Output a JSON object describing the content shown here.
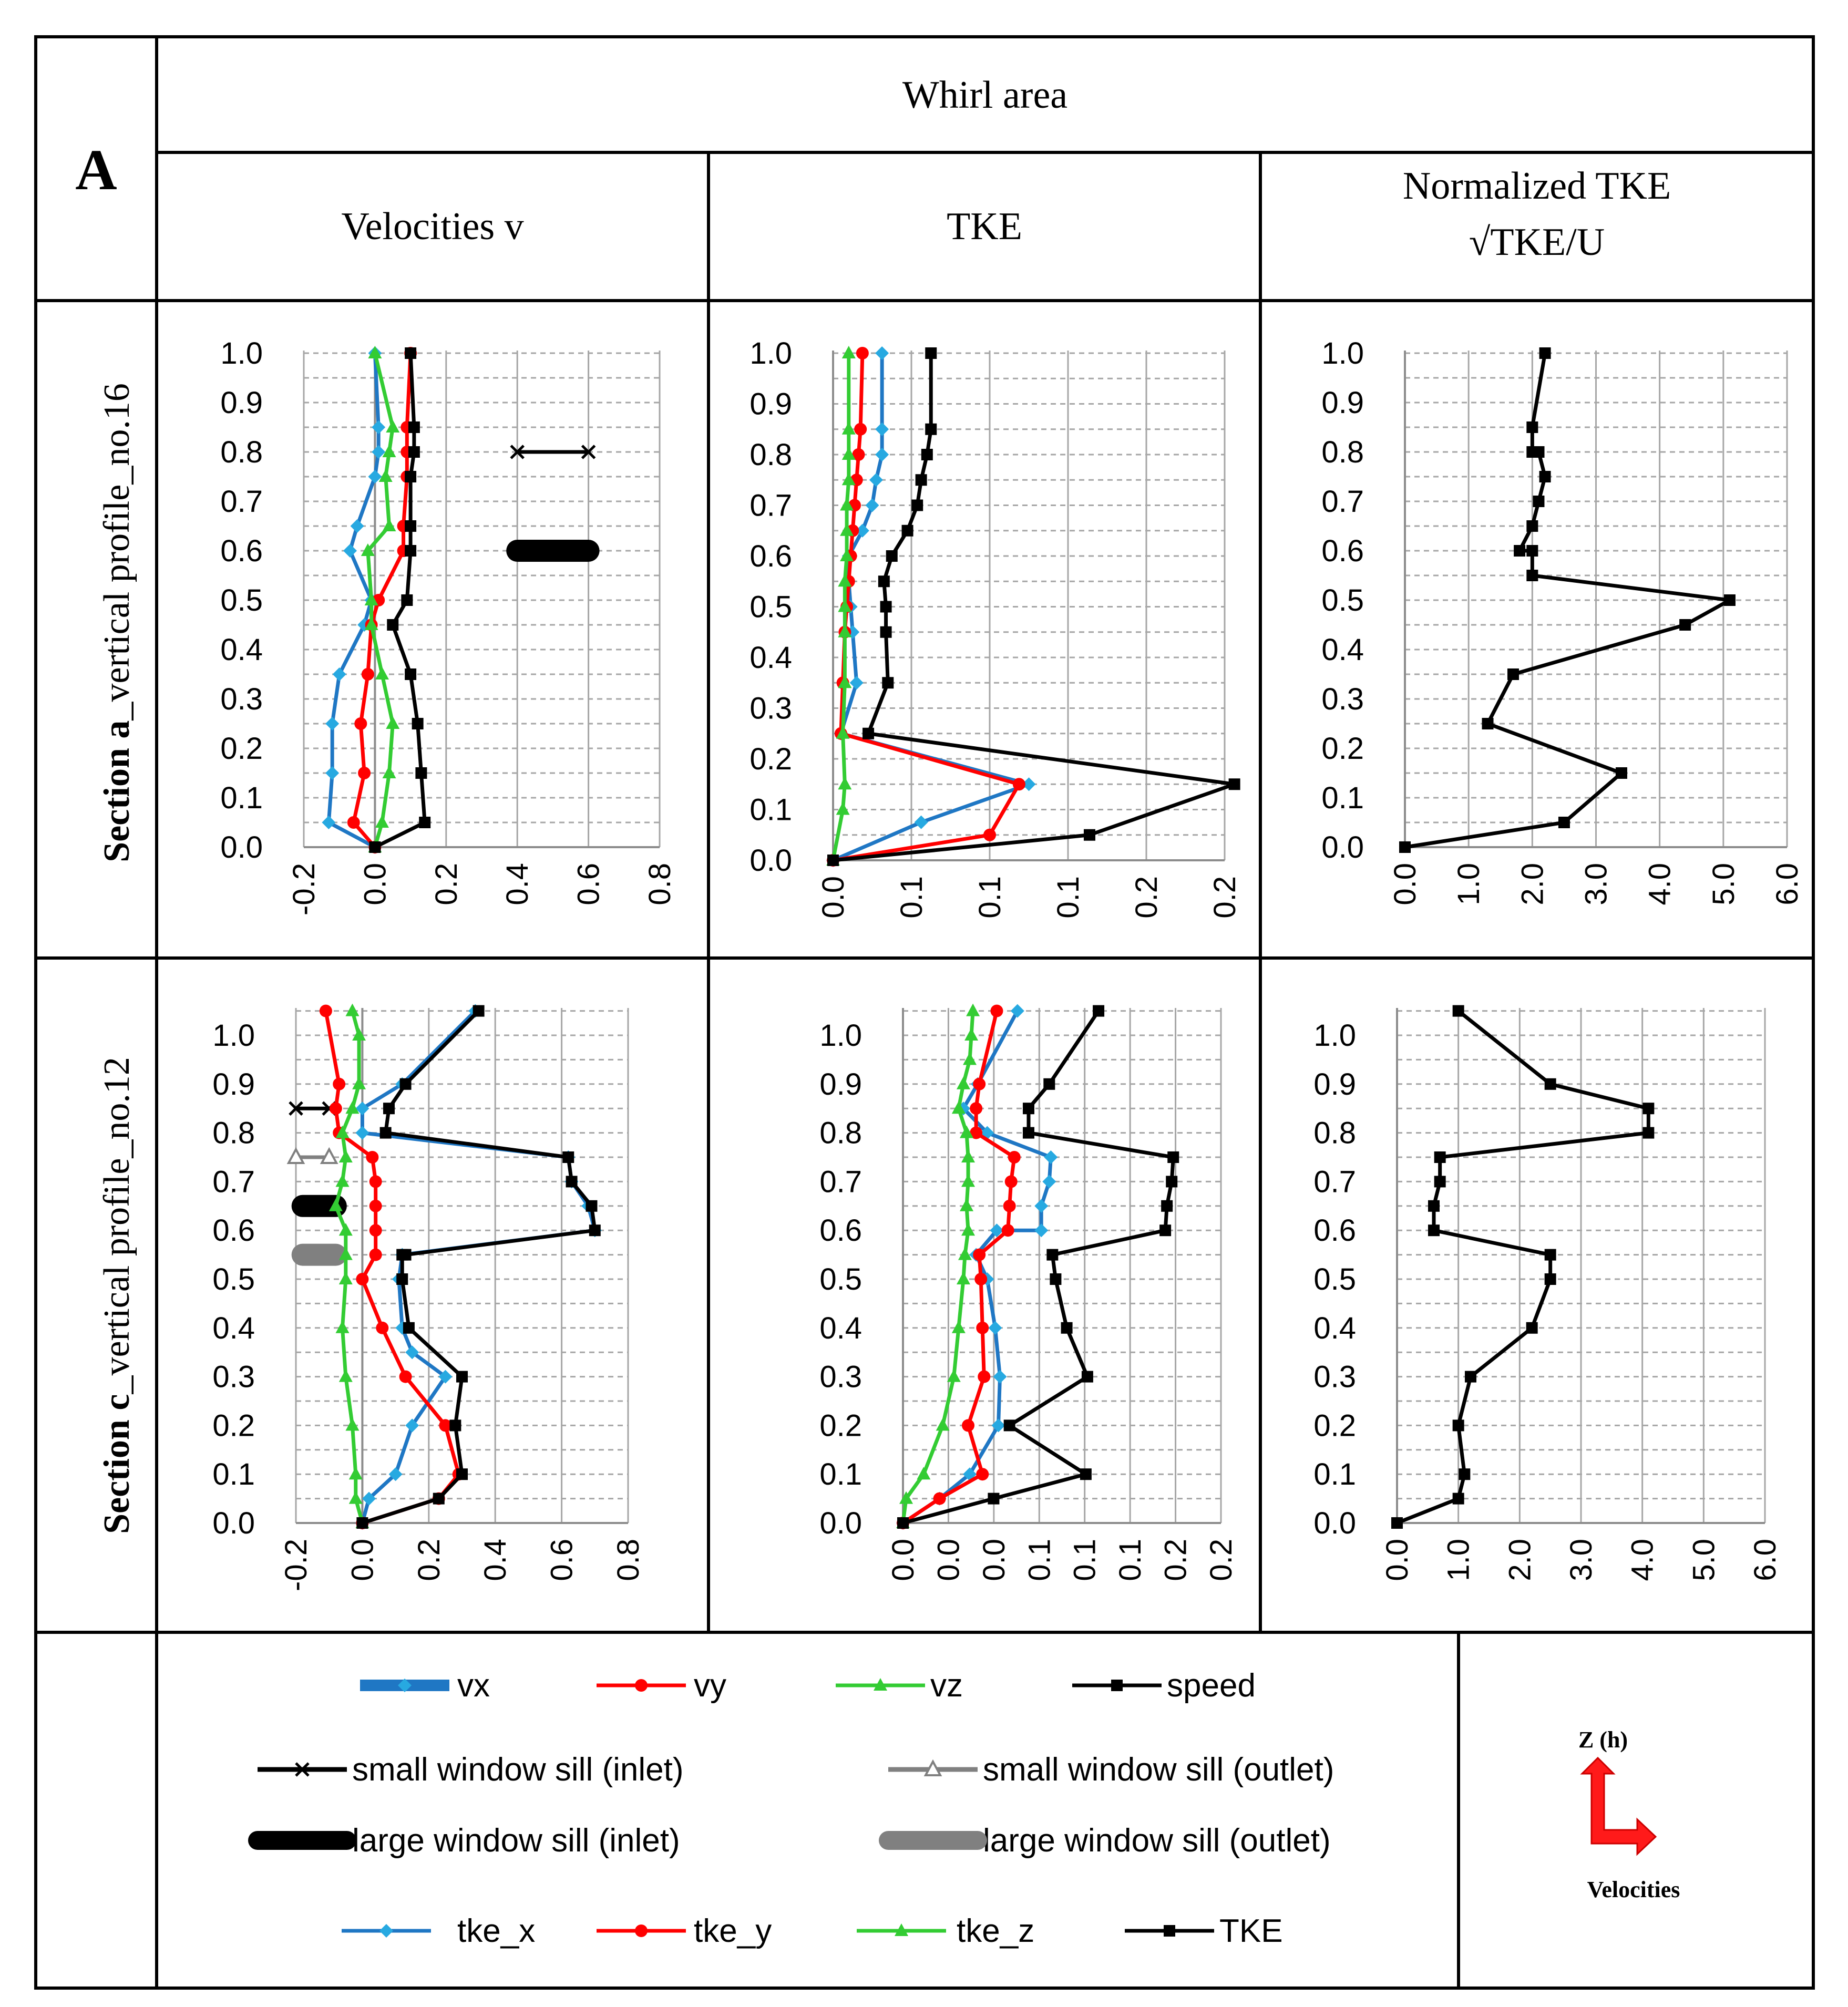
{
  "panel_letter": "A",
  "header": {
    "title": "Whirl area",
    "col1": "Velocities v",
    "col2": "TKE",
    "col3_line1": "Normalized TKE",
    "col3_line2": "√TKE/U"
  },
  "rows": {
    "row1_label_pre": "Section ",
    "row1_label_bold": "a",
    "row1_label_post": "_vertical profile_no.16",
    "row2_label_pre": "Section ",
    "row2_label_bold": "c",
    "row2_label_post": "_vertical profile_no.12"
  },
  "colors": {
    "vx": "#1f77c4",
    "vx_marker": "#27a9e1",
    "vy": "#ff0000",
    "vz": "#33cc33",
    "speed": "#000000",
    "outlet": "#808080"
  },
  "legend": {
    "vx": "vx",
    "vy": "vy",
    "vz": "vz",
    "speed": "speed",
    "small_inlet": "small window sill (inlet)",
    "small_outlet": "small window sill (outlet)",
    "large_inlet": "large window sill (inlet)",
    "large_outlet": "large window sill (outlet)",
    "tke_x": "tke_x",
    "tke_y": "tke_y",
    "tke_z": "tke_z",
    "TKE": "TKE"
  },
  "axis_icon": {
    "top_label": "Z (h)",
    "bottom_label": "Velocities"
  },
  "chart_data": [
    {
      "id": "a_vel",
      "type": "line",
      "title": "Velocities v",
      "xlim": [
        -0.2,
        0.8
      ],
      "ylim": [
        0,
        1
      ],
      "xticks": [
        "-0.2",
        "0.0",
        "0.2",
        "0.4",
        "0.6",
        "0.8"
      ],
      "yticks": [
        "0.0",
        "0.1",
        "0.2",
        "0.3",
        "0.4",
        "0.5",
        "0.6",
        "0.7",
        "0.8",
        "0.9",
        "1.0"
      ],
      "series": [
        {
          "name": "vx",
          "x": [
            0,
            -0.13,
            -0.12,
            -0.12,
            -0.1,
            -0.03,
            -0.01,
            -0.07,
            -0.05,
            0.0,
            0.01,
            0.01,
            0.0
          ],
          "y": [
            0.0,
            0.05,
            0.15,
            0.25,
            0.35,
            0.45,
            0.5,
            0.6,
            0.65,
            0.75,
            0.8,
            0.85,
            1.0
          ]
        },
        {
          "name": "vy",
          "x": [
            0,
            -0.06,
            -0.03,
            -0.04,
            -0.02,
            -0.01,
            0.01,
            0.08,
            0.08,
            0.09,
            0.09,
            0.09,
            0.1
          ],
          "y": [
            0.0,
            0.05,
            0.15,
            0.25,
            0.35,
            0.45,
            0.5,
            0.6,
            0.65,
            0.75,
            0.8,
            0.85,
            1.0
          ]
        },
        {
          "name": "vz",
          "x": [
            0,
            0.02,
            0.04,
            0.05,
            0.02,
            -0.01,
            -0.01,
            -0.02,
            0.04,
            0.03,
            0.04,
            0.05,
            0.0
          ],
          "y": [
            0.0,
            0.05,
            0.15,
            0.25,
            0.35,
            0.45,
            0.5,
            0.6,
            0.65,
            0.75,
            0.8,
            0.85,
            1.0
          ]
        },
        {
          "name": "speed",
          "x": [
            0,
            0.14,
            0.13,
            0.12,
            0.1,
            0.05,
            0.09,
            0.1,
            0.1,
            0.1,
            0.11,
            0.11,
            0.1
          ],
          "y": [
            0.0,
            0.05,
            0.15,
            0.25,
            0.35,
            0.45,
            0.5,
            0.6,
            0.65,
            0.75,
            0.8,
            0.85,
            1.0
          ]
        }
      ],
      "sills": [
        {
          "name": "small window sill (inlet)",
          "x": [
            0.4,
            0.6
          ],
          "y": 0.8
        },
        {
          "name": "large window sill (inlet)",
          "x": [
            0.4,
            0.6
          ],
          "y": 0.6
        }
      ]
    },
    {
      "id": "a_tke",
      "type": "line",
      "title": "TKE",
      "xlim": [
        0,
        0.2
      ],
      "ylim": [
        0,
        1
      ],
      "xticks": [
        "0.0",
        "0.1",
        "0.1",
        "0.1",
        "0.2",
        "0.2"
      ],
      "yticks": [
        "0.0",
        "0.1",
        "0.2",
        "0.3",
        "0.4",
        "0.5",
        "0.6",
        "0.7",
        "0.8",
        "0.9",
        "1.0"
      ],
      "series": [
        {
          "name": "tke_x",
          "x": [
            0,
            0.045,
            0.1,
            0.004,
            0.012,
            0.01,
            0.009,
            0.008,
            0.008,
            0.015,
            0.02,
            0.022,
            0.025,
            0.025,
            0.025
          ],
          "y": [
            0.0,
            0.075,
            0.15,
            0.25,
            0.35,
            0.45,
            0.5,
            0.55,
            0.6,
            0.65,
            0.7,
            0.75,
            0.8,
            0.85,
            1.0
          ]
        },
        {
          "name": "tke_y",
          "x": [
            0,
            0.08,
            0.095,
            0.004,
            0.005,
            0.006,
            0.007,
            0.008,
            0.009,
            0.01,
            0.011,
            0.012,
            0.013,
            0.014,
            0.015
          ],
          "y": [
            0.0,
            0.05,
            0.15,
            0.25,
            0.35,
            0.45,
            0.5,
            0.55,
            0.6,
            0.65,
            0.7,
            0.75,
            0.8,
            0.85,
            1.0
          ]
        },
        {
          "name": "tke_z",
          "x": [
            0,
            0.005,
            0.006,
            0.005,
            0.006,
            0.006,
            0.006,
            0.006,
            0.007,
            0.007,
            0.007,
            0.008,
            0.008,
            0.008,
            0.008
          ],
          "y": [
            0.0,
            0.1,
            0.15,
            0.25,
            0.35,
            0.45,
            0.5,
            0.55,
            0.6,
            0.65,
            0.7,
            0.75,
            0.8,
            0.85,
            1.0
          ]
        },
        {
          "name": "TKE",
          "x": [
            0,
            0.131,
            0.205,
            0.018,
            0.028,
            0.027,
            0.027,
            0.026,
            0.03,
            0.038,
            0.043,
            0.045,
            0.048,
            0.05,
            0.05
          ],
          "y": [
            0.0,
            0.05,
            0.15,
            0.25,
            0.35,
            0.45,
            0.5,
            0.55,
            0.6,
            0.65,
            0.7,
            0.75,
            0.8,
            0.85,
            1.0
          ]
        }
      ]
    },
    {
      "id": "a_norm",
      "type": "line",
      "title": "Normalized TKE",
      "xlim": [
        0,
        6
      ],
      "ylim": [
        0,
        1
      ],
      "xticks": [
        "0.0",
        "1.0",
        "2.0",
        "3.0",
        "4.0",
        "5.0",
        "6.0"
      ],
      "yticks": [
        "0.0",
        "0.1",
        "0.2",
        "0.3",
        "0.4",
        "0.5",
        "0.6",
        "0.7",
        "0.8",
        "0.9",
        "1.0"
      ],
      "series": [
        {
          "name": "TKE",
          "x": [
            0.0,
            2.5,
            3.4,
            1.3,
            1.7,
            4.4,
            5.1,
            2.0,
            2.0,
            1.8,
            2.0,
            2.1,
            2.2,
            2.1,
            2.1,
            2.0,
            2.0,
            2.2
          ],
          "y": [
            0.0,
            0.05,
            0.15,
            0.25,
            0.35,
            0.45,
            0.5,
            0.55,
            0.6,
            0.6,
            0.65,
            0.7,
            0.75,
            0.8,
            0.8,
            0.8,
            0.85,
            1.0
          ]
        }
      ]
    },
    {
      "id": "c_vel",
      "type": "line",
      "title": "Velocities v",
      "xlim": [
        -0.2,
        0.8
      ],
      "ylim": [
        0,
        1.05
      ],
      "xticks": [
        "-0.2",
        "0.0",
        "0.2",
        "0.4",
        "0.6",
        "0.8"
      ],
      "yticks": [
        "0.0",
        "0.1",
        "0.2",
        "0.3",
        "0.4",
        "0.5",
        "0.6",
        "0.7",
        "0.8",
        "0.9",
        "1.0"
      ],
      "series": [
        {
          "name": "vx",
          "x": [
            0.0,
            0.02,
            0.1,
            0.15,
            0.25,
            0.15,
            0.12,
            0.11,
            0.12,
            0.7,
            0.68,
            0.63,
            0.62,
            0.0,
            0.0,
            0.12,
            0.34
          ],
          "y": [
            0.0,
            0.05,
            0.1,
            0.2,
            0.3,
            0.35,
            0.4,
            0.5,
            0.55,
            0.6,
            0.65,
            0.7,
            0.75,
            0.8,
            0.85,
            0.9,
            1.05
          ]
        },
        {
          "name": "vy",
          "x": [
            0.0,
            0.23,
            0.29,
            0.25,
            0.13,
            0.06,
            0.0,
            0.04,
            0.04,
            0.04,
            0.04,
            0.03,
            -0.07,
            -0.08,
            -0.07,
            -0.11
          ],
          "y": [
            0.0,
            0.05,
            0.1,
            0.2,
            0.3,
            0.4,
            0.5,
            0.55,
            0.6,
            0.65,
            0.7,
            0.75,
            0.8,
            0.85,
            0.9,
            1.05
          ]
        },
        {
          "name": "vz",
          "x": [
            0.0,
            -0.02,
            -0.02,
            -0.03,
            -0.05,
            -0.06,
            -0.05,
            -0.05,
            -0.05,
            -0.08,
            -0.06,
            -0.05,
            -0.06,
            -0.03,
            -0.01,
            -0.01,
            -0.03
          ],
          "y": [
            0.0,
            0.05,
            0.1,
            0.2,
            0.3,
            0.4,
            0.5,
            0.55,
            0.6,
            0.65,
            0.7,
            0.75,
            0.8,
            0.85,
            0.9,
            1.0,
            1.05
          ]
        },
        {
          "name": "speed",
          "x": [
            0.0,
            0.23,
            0.3,
            0.28,
            0.3,
            0.14,
            0.12,
            0.12,
            0.13,
            0.7,
            0.69,
            0.63,
            0.62,
            0.07,
            0.08,
            0.13,
            0.35
          ],
          "y": [
            0.0,
            0.05,
            0.1,
            0.2,
            0.3,
            0.4,
            0.5,
            0.55,
            0.55,
            0.6,
            0.65,
            0.7,
            0.75,
            0.8,
            0.85,
            0.9,
            1.05
          ]
        }
      ],
      "sills": [
        {
          "name": "small window sill (inlet)",
          "x": [
            -0.2,
            -0.1
          ],
          "y": 0.85
        },
        {
          "name": "small window sill (outlet)",
          "x": [
            -0.2,
            -0.1
          ],
          "y": 0.75
        },
        {
          "name": "large window sill (inlet)",
          "x": [
            -0.18,
            -0.08
          ],
          "y": 0.65
        },
        {
          "name": "large window sill (outlet)",
          "x": [
            -0.18,
            -0.08
          ],
          "y": 0.55
        }
      ]
    },
    {
      "id": "c_tke",
      "type": "line",
      "title": "TKE",
      "xlim": [
        0,
        0.2
      ],
      "ylim": [
        0,
        1.05
      ],
      "xticks": [
        "0.0",
        "0.0",
        "0.0",
        "0.1",
        "0.1",
        "0.1",
        "0.2",
        "0.2"
      ],
      "yticks": [
        "0.0",
        "0.1",
        "0.2",
        "0.3",
        "0.4",
        "0.5",
        "0.6",
        "0.7",
        "0.8",
        "0.9",
        "1.0"
      ],
      "series": [
        {
          "name": "tke_x",
          "x": [
            0.0,
            0.023,
            0.042,
            0.06,
            0.061,
            0.058,
            0.053,
            0.046,
            0.059,
            0.087,
            0.087,
            0.092,
            0.093,
            0.053,
            0.038,
            0.047,
            0.072
          ],
          "y": [
            0.0,
            0.05,
            0.1,
            0.2,
            0.3,
            0.4,
            0.5,
            0.55,
            0.6,
            0.6,
            0.65,
            0.7,
            0.75,
            0.8,
            0.85,
            0.9,
            1.05
          ]
        },
        {
          "name": "tke_y",
          "x": [
            0.0,
            0.023,
            0.05,
            0.041,
            0.051,
            0.05,
            0.049,
            0.048,
            0.066,
            0.067,
            0.068,
            0.07,
            0.046,
            0.046,
            0.048,
            0.059
          ],
          "y": [
            0.0,
            0.05,
            0.1,
            0.2,
            0.3,
            0.4,
            0.5,
            0.55,
            0.6,
            0.65,
            0.7,
            0.75,
            0.8,
            0.85,
            0.9,
            1.05
          ]
        },
        {
          "name": "tke_z",
          "x": [
            0.0,
            0.002,
            0.013,
            0.025,
            0.032,
            0.035,
            0.038,
            0.039,
            0.041,
            0.04,
            0.041,
            0.041,
            0.04,
            0.035,
            0.038,
            0.042,
            0.043,
            0.044
          ],
          "y": [
            0.0,
            0.05,
            0.1,
            0.2,
            0.3,
            0.4,
            0.5,
            0.55,
            0.6,
            0.65,
            0.7,
            0.75,
            0.8,
            0.85,
            0.9,
            0.95,
            1.0,
            1.05
          ]
        },
        {
          "name": "TKE",
          "x": [
            0.0,
            0.057,
            0.115,
            0.067,
            0.116,
            0.103,
            0.096,
            0.094,
            0.165,
            0.166,
            0.169,
            0.17,
            0.079,
            0.079,
            0.092,
            0.123
          ],
          "y": [
            0.0,
            0.05,
            0.1,
            0.2,
            0.3,
            0.4,
            0.5,
            0.55,
            0.6,
            0.65,
            0.7,
            0.75,
            0.8,
            0.85,
            0.9,
            1.05
          ]
        }
      ]
    },
    {
      "id": "c_norm",
      "type": "line",
      "title": "Normalized TKE",
      "xlim": [
        0,
        6
      ],
      "ylim": [
        0,
        1.05
      ],
      "xticks": [
        "0.0",
        "1.0",
        "2.0",
        "3.0",
        "4.0",
        "5.0",
        "6.0"
      ],
      "yticks": [
        "0.0",
        "0.1",
        "0.2",
        "0.3",
        "0.4",
        "0.5",
        "0.6",
        "0.7",
        "0.8",
        "0.9",
        "1.0"
      ],
      "series": [
        {
          "name": "TKE",
          "x": [
            0.0,
            1.0,
            1.1,
            1.0,
            1.2,
            2.2,
            2.5,
            2.5,
            0.6,
            0.6,
            0.7,
            0.7,
            4.1,
            4.1,
            2.5,
            1.0
          ],
          "y": [
            0.0,
            0.05,
            0.1,
            0.2,
            0.3,
            0.4,
            0.5,
            0.55,
            0.6,
            0.65,
            0.7,
            0.75,
            0.8,
            0.85,
            0.9,
            1.05
          ]
        }
      ]
    }
  ]
}
